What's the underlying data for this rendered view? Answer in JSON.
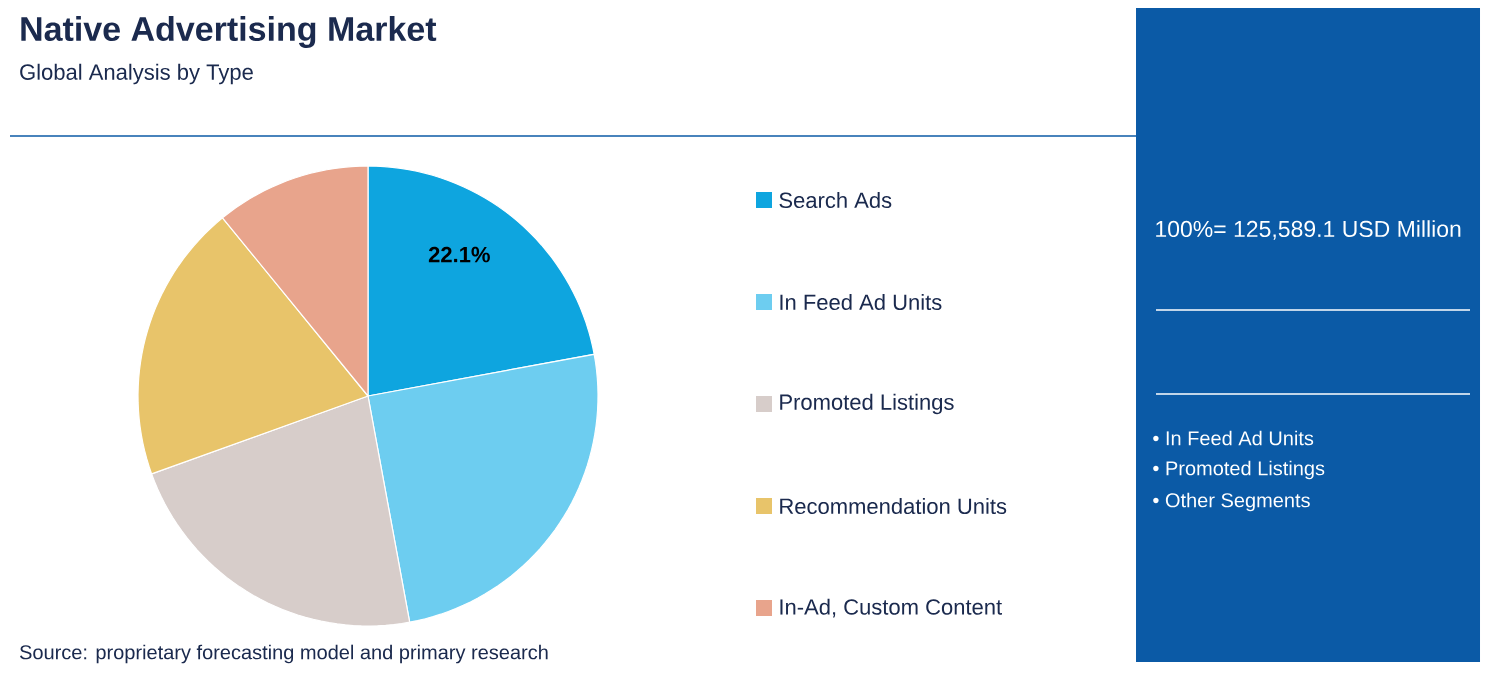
{
  "chart_data": {
    "type": "pie",
    "title": "Native Advertising Market",
    "subtitle": "Global Analysis by Type",
    "categories": [
      "Search Ads",
      "In Feed Ad Units",
      "Promoted Listings",
      "Recommendation Units",
      "In-Ad, Custom Content"
    ],
    "values": [
      22.1,
      25.0,
      22.4,
      19.6,
      10.9
    ],
    "colors": [
      "#0ea5df",
      "#6dcdf0",
      "#d7cdca",
      "#e8c46a",
      "#e8a48c"
    ],
    "value_labels": [
      "22.1%",
      null,
      null,
      null,
      null
    ],
    "legend": "right",
    "annotations": [
      "Source: proprietary forecasting model and primary research",
      "100%= 125,589.1 USD Million",
      "• In Feed Ad Units",
      "• Promoted Listings",
      "• Other Segments"
    ]
  }
}
